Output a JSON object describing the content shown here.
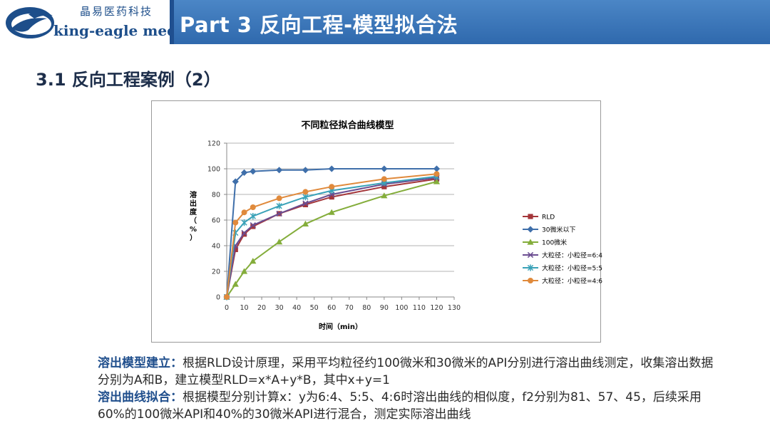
{
  "header": {
    "title": "Part 3 反向工程-模型拟合法"
  },
  "logo": {
    "cn": "晶易医药科技",
    "en": "king-eagle med"
  },
  "section": {
    "title": "3.1 反向工程案例（2）"
  },
  "colors": {
    "header_bg": "#3a76ba",
    "RLD": "#a4363a",
    "30um": "#3f6faa",
    "100um": "#84ad3b",
    "mix64": "#6b4d91",
    "mix55": "#3aa2b8",
    "mix46": "#e08a3c"
  },
  "chart_data": {
    "type": "line",
    "title": "不同粒径拟合曲线模型",
    "xlabel": "时间（min）",
    "ylabel": "溶出度（%）",
    "xlim": [
      0,
      130
    ],
    "ylim": [
      0,
      120
    ],
    "xticks": [
      0,
      10,
      20,
      30,
      40,
      50,
      60,
      70,
      80,
      90,
      100,
      110,
      120,
      130
    ],
    "yticks": [
      0,
      20,
      40,
      60,
      80,
      100,
      120
    ],
    "grid": true,
    "legend_position": "right",
    "x": [
      0,
      5,
      10,
      15,
      30,
      45,
      60,
      90,
      120
    ],
    "series": [
      {
        "name": "RLD",
        "color": "#a4363a",
        "marker": "square",
        "values": [
          0,
          37,
          49,
          55,
          65,
          72,
          78,
          86,
          92
        ]
      },
      {
        "name": "30微米以下",
        "color": "#3f6faa",
        "marker": "diamond",
        "values": [
          0,
          90,
          97,
          98,
          99,
          99,
          100,
          100,
          100
        ]
      },
      {
        "name": "100微米",
        "color": "#84ad3b",
        "marker": "triangle",
        "values": [
          0,
          10,
          20,
          28,
          43,
          57,
          66,
          79,
          90
        ]
      },
      {
        "name": "大粒径：小粒径=6:4",
        "color": "#6b4d91",
        "marker": "x",
        "values": [
          0,
          40,
          50,
          56,
          65,
          73,
          80,
          88,
          93
        ]
      },
      {
        "name": "大粒径：小粒径=5:5",
        "color": "#3aa2b8",
        "marker": "star",
        "values": [
          0,
          50,
          58,
          63,
          71,
          78,
          83,
          89,
          94
        ]
      },
      {
        "name": "大粒径：小粒径=4:6",
        "color": "#e08a3c",
        "marker": "circle",
        "values": [
          0,
          58,
          66,
          70,
          77,
          82,
          86,
          92,
          96
        ]
      }
    ]
  },
  "body": {
    "p1_label": "溶出模型建立：",
    "p1_text": "根据RLD设计原理，采用平均粒径约100微米和30微米的API分别进行溶出曲线测定，收集溶出数据分别为A和B，建立模型RLD=x*A+y*B，其中x+y=1",
    "p2_label": "溶出曲线拟合：",
    "p2_text": "根据模型分别计算x：y为6:4、5:5、4:6时溶出曲线的相似度，f2分别为81、57、45，后续采用60%的100微米API和40%的30微米API进行混合，测定实际溶出曲线"
  }
}
